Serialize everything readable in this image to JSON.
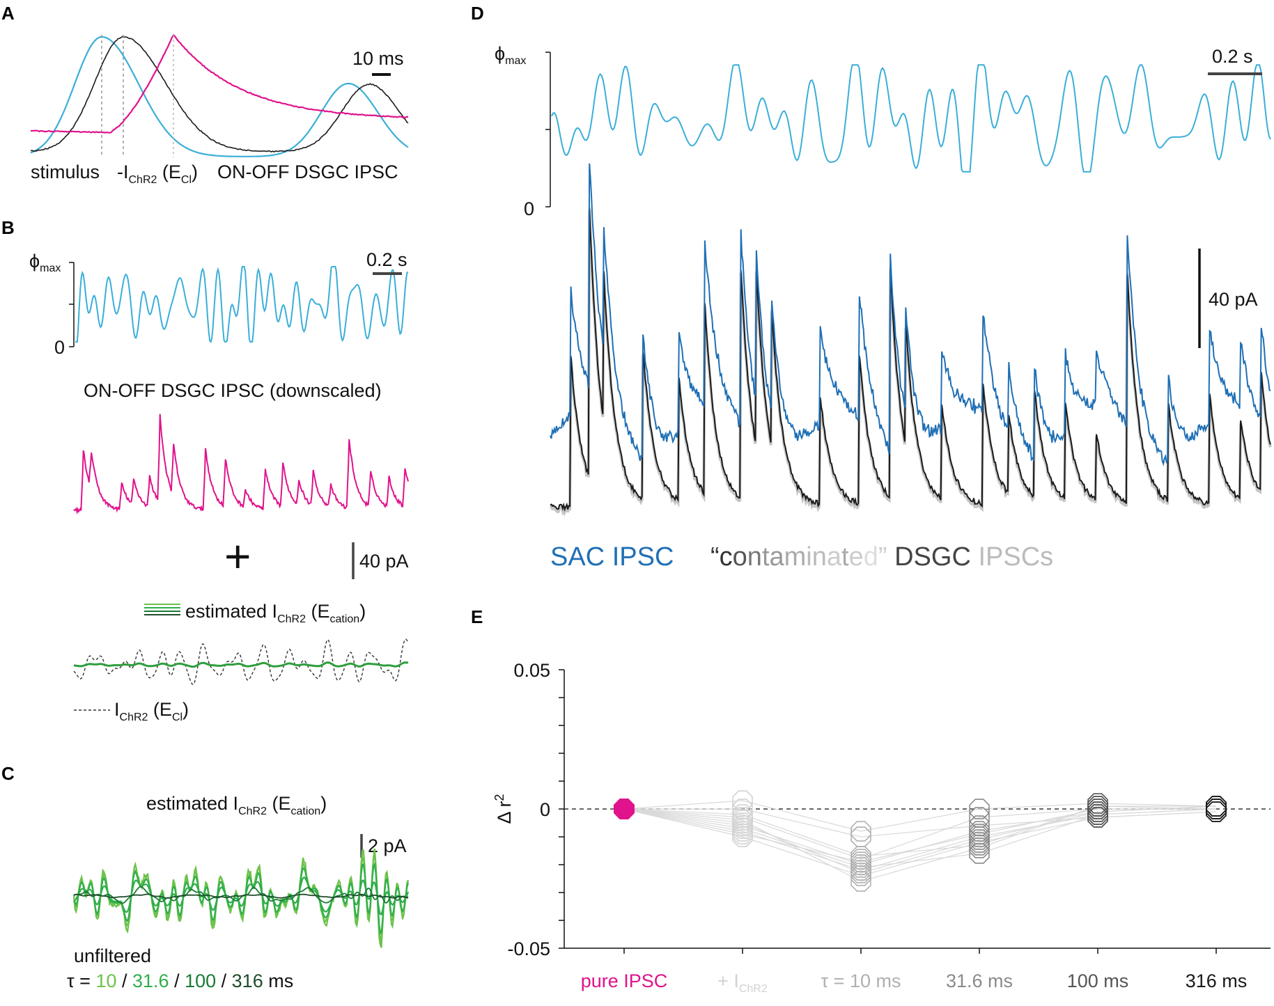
{
  "colors": {
    "stimulus": "#3aaed8",
    "ipsc": "#e0128c",
    "sac": "#1f6fb5",
    "black": "#1a1a1a",
    "green_light": "#6cc24a",
    "green_mid": "#2fae4a",
    "green_dark": "#1a7a36",
    "green_darkest": "#1e4d2b"
  },
  "panels": {
    "A": {
      "label": "A",
      "scalebar": "10 ms",
      "legend": {
        "stimulus": "stimulus",
        "ichr2_pre": "-I",
        "ichr2_sub": "ChR2",
        "ichr2_mid": " (E",
        "ichr2_sub2": "Cl",
        "ichr2_post": ")",
        "ipsc": "ON-OFF DSGC IPSC"
      }
    },
    "B": {
      "label": "B",
      "phi": "ϕ",
      "phi_sub": "max",
      "zero": "0",
      "scalebar_time": "0.2 s",
      "ipsc_title": "ON-OFF DSGC IPSC (downscaled)",
      "plus": "+",
      "scalebar_amp": "40 pA",
      "est_pre": "estimated I",
      "est_sub": "ChR2",
      "est_mid": " (E",
      "est_sub2": "cation",
      "est_post": ")",
      "ichr2_pre": "I",
      "ichr2_sub": "ChR2",
      "ichr2_mid": " (E",
      "ichr2_sub2": "Cl",
      "ichr2_post": ")"
    },
    "C": {
      "label": "C",
      "est_pre": "estimated I",
      "est_sub": "ChR2",
      "est_mid": " (E",
      "est_sub2": "cation",
      "est_post": ")",
      "scalebar_amp": "2 pA",
      "unfiltered": "unfiltered",
      "tau_prefix": "τ = ",
      "tau_values": [
        "10",
        "31.6",
        "100",
        "316"
      ],
      "sep": " / ",
      "tau_unit": " ms"
    },
    "D": {
      "label": "D",
      "phi": "ϕ",
      "phi_sub": "max",
      "zero": "0",
      "scalebar_time": "0.2 s",
      "scalebar_amp": "40 pA",
      "legend_sac": "SAC IPSC",
      "legend_q1": "“",
      "legend_chars": [
        "c",
        "o",
        "n",
        "t",
        "a",
        "m",
        "i",
        "n",
        "a",
        "t",
        "e",
        "d"
      ],
      "legend_q2": "”",
      "legend_words": [
        "DSGC",
        "IPSCs"
      ]
    },
    "E": {
      "label": "E",
      "ylabel": "Δ r",
      "ylabel_sup": "2"
    }
  },
  "chart_data": [
    {
      "panel": "E",
      "type": "scatter",
      "ylabel": "Δ r^2",
      "ylim": [
        -0.05,
        0.05
      ],
      "yticks": [
        -0.05,
        0,
        0.05
      ],
      "ytick_labels": [
        "-0.05",
        "0",
        "0.05"
      ],
      "reference_line": 0,
      "categories": [
        "pure IPSC",
        "+ I_ChR2",
        "τ = 10 ms",
        "31.6 ms",
        "100 ms",
        "316 ms"
      ],
      "category_colors": [
        "#e0128c",
        "#d2d2d2",
        "#b0b0b0",
        "#8a8a8a",
        "#555555",
        "#1a1a1a"
      ],
      "values": [
        [
          0,
          0,
          0,
          0,
          0,
          0,
          0,
          0,
          0,
          0,
          0
        ],
        [
          0.003,
          -0.003,
          -0.006,
          -0.008,
          -0.01,
          -0.004,
          -0.007,
          -0.009,
          -0.005,
          0.0,
          -0.002
        ],
        [
          -0.008,
          -0.018,
          -0.02,
          -0.022,
          -0.024,
          -0.026,
          -0.021,
          -0.019,
          -0.023,
          -0.01,
          -0.017
        ],
        [
          0.0,
          -0.003,
          -0.008,
          -0.01,
          -0.012,
          -0.014,
          -0.016,
          -0.009,
          -0.011,
          -0.006,
          -0.013
        ],
        [
          0.002,
          0.0,
          -0.001,
          -0.002,
          -0.003,
          0.001,
          -0.002,
          0.0,
          -0.001,
          -0.003,
          0.001
        ],
        [
          0.001,
          0.0,
          0.001,
          0.0,
          -0.001,
          0.001,
          0.0,
          0.0,
          0.001,
          -0.001,
          0.0
        ]
      ]
    },
    {
      "panel": "A",
      "type": "line",
      "x_unit": "ms",
      "series": [
        {
          "name": "stimulus",
          "peak_ms": 0
        },
        {
          "name": "-I_ChR2 (E_Cl)",
          "peak_ms": 7
        },
        {
          "name": "ON-OFF DSGC IPSC",
          "peak_ms": 24
        }
      ]
    }
  ]
}
